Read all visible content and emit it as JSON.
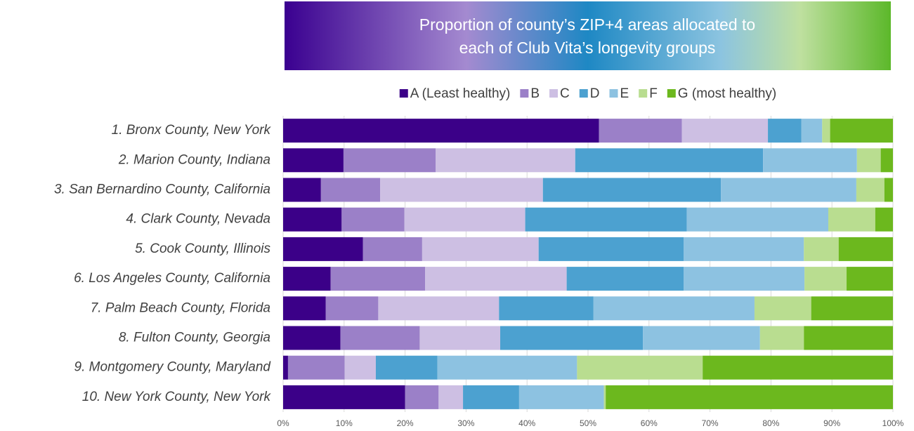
{
  "chart_data": {
    "type": "stacked-barh",
    "title": [
      "Proportion of county’s ZIP+4 areas allocated to",
      "each of Club Vita’s longevity groups"
    ],
    "categories": [
      "1. Bronx County, New York",
      "2. Marion County, Indiana",
      "3. San Bernardino County, California",
      "4. Clark County, Nevada",
      "5. Cook County, Illinois",
      "6. Los Angeles County, California",
      "7. Palm Beach County, Florida",
      "8. Fulton County, Georgia",
      "9. Montgomery County, Maryland",
      "10. New York County, New York"
    ],
    "series": [
      {
        "name": "A (Least healthy)",
        "color": "#3b0088",
        "values": [
          51.8,
          9.9,
          6.2,
          9.6,
          13.1,
          7.8,
          7.0,
          9.4,
          0.8,
          20.0
        ]
      },
      {
        "name": "B",
        "color": "#9b80c8",
        "values": [
          13.6,
          15.1,
          9.7,
          10.3,
          9.7,
          15.5,
          8.6,
          13.0,
          9.3,
          5.5
        ]
      },
      {
        "name": "C",
        "color": "#cdbfe3",
        "values": [
          14.1,
          22.9,
          26.7,
          19.8,
          19.1,
          23.2,
          19.8,
          13.2,
          5.1,
          4.0
        ]
      },
      {
        "name": "D",
        "color": "#4ca1d0",
        "values": [
          5.5,
          30.8,
          29.2,
          26.5,
          23.8,
          19.2,
          15.5,
          23.4,
          10.1,
          9.2
        ]
      },
      {
        "name": "E",
        "color": "#8dc2e1",
        "values": [
          3.4,
          15.4,
          22.2,
          23.2,
          19.7,
          19.8,
          26.4,
          19.2,
          22.9,
          13.9
        ]
      },
      {
        "name": "F",
        "color": "#b9dd90",
        "values": [
          1.3,
          3.9,
          4.6,
          7.7,
          5.7,
          6.9,
          9.3,
          7.2,
          20.6,
          0.3
        ]
      },
      {
        "name": "G (most healthy)",
        "color": "#6cb81e",
        "values": [
          10.3,
          2.0,
          1.4,
          2.9,
          8.9,
          7.6,
          13.4,
          14.6,
          31.2,
          47.1
        ]
      }
    ],
    "xlim": [
      0,
      100
    ],
    "xticks": [
      {
        "value": 0,
        "label": "0%"
      },
      {
        "value": 10,
        "label": "10%"
      },
      {
        "value": 20,
        "label": "20%"
      },
      {
        "value": 30,
        "label": "30%"
      },
      {
        "value": 40,
        "label": "40%"
      },
      {
        "value": 50,
        "label": "50%"
      },
      {
        "value": 60,
        "label": "60%"
      },
      {
        "value": 70,
        "label": "70%"
      },
      {
        "value": 80,
        "label": "80%"
      },
      {
        "value": 90,
        "label": "90%"
      },
      {
        "value": 100,
        "label": "100%"
      }
    ],
    "grid": true,
    "legend": "top"
  }
}
